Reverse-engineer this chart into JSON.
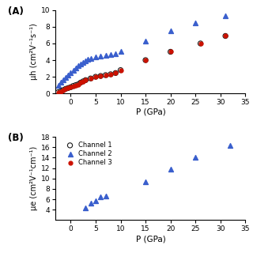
{
  "panel_A": {
    "ylabel": "μh (cm²V⁻¹s⁻¹)",
    "xlabel": "P (GPa)",
    "ylim": [
      0,
      10
    ],
    "xlim": [
      -3,
      34
    ],
    "yticks": [
      0,
      2,
      4,
      6,
      8,
      10
    ],
    "xticks": [
      0,
      5,
      10,
      15,
      20,
      25,
      30,
      35
    ],
    "ch2_x": [
      -2.5,
      -2,
      -1.5,
      -1,
      -0.5,
      0,
      0.5,
      1,
      1.5,
      2,
      2.5,
      3,
      3.5,
      4,
      5,
      6,
      7,
      8,
      9,
      10,
      15,
      20,
      25,
      31
    ],
    "ch2_y": [
      1.0,
      1.3,
      1.6,
      1.9,
      2.2,
      2.5,
      2.8,
      3.1,
      3.3,
      3.5,
      3.7,
      3.9,
      4.1,
      4.2,
      4.4,
      4.5,
      4.6,
      4.7,
      4.8,
      5.0,
      6.3,
      7.5,
      8.5,
      9.3
    ],
    "ch1_x": [
      -2.5,
      -2,
      -1.5,
      -1,
      -0.5,
      0,
      0.5,
      1,
      1.5,
      2,
      2.5,
      3,
      4,
      5,
      6,
      7,
      8,
      9,
      10,
      15,
      20,
      26,
      31
    ],
    "ch1_y": [
      0.15,
      0.25,
      0.4,
      0.55,
      0.65,
      0.75,
      0.9,
      1.0,
      1.1,
      1.3,
      1.45,
      1.6,
      1.8,
      2.0,
      2.1,
      2.2,
      2.3,
      2.45,
      2.8,
      4.0,
      5.0,
      6.0,
      6.9
    ],
    "ch3_x": [
      -2.5,
      -2,
      -1.5,
      -1,
      -0.5,
      0,
      0.5,
      1,
      1.5,
      2,
      2.5,
      3,
      4,
      5,
      6,
      7,
      8,
      9,
      10,
      15,
      20,
      26,
      31
    ],
    "ch3_y": [
      0.15,
      0.25,
      0.4,
      0.55,
      0.65,
      0.75,
      0.9,
      1.0,
      1.1,
      1.3,
      1.45,
      1.6,
      1.8,
      2.0,
      2.1,
      2.2,
      2.3,
      2.45,
      2.8,
      4.0,
      5.0,
      6.0,
      6.9
    ],
    "label": "(A)"
  },
  "panel_B": {
    "ylabel": "μe (cm²V⁻¹cm⁻¹)",
    "xlabel": "P (GPa)",
    "ylim": [
      2,
      18
    ],
    "xlim": [
      -3,
      34
    ],
    "yticks": [
      4,
      6,
      8,
      10,
      12,
      14,
      16,
      18
    ],
    "xticks": [
      0,
      5,
      10,
      15,
      20,
      25,
      30,
      35
    ],
    "ch2_x": [
      3,
      4,
      5,
      6,
      7,
      15,
      20,
      25,
      32
    ],
    "ch2_y": [
      4.3,
      5.3,
      5.7,
      6.5,
      6.6,
      9.3,
      11.8,
      14.0,
      16.3
    ],
    "label": "(B)",
    "legend_labels": [
      "Channel 1",
      "Channel 2",
      "Channel 3"
    ]
  },
  "colors": {
    "blue": "#3A5FCD",
    "black": "#1a1a1a",
    "red": "#CC1100"
  },
  "marker_size_tri": 18,
  "marker_size_circ_open": 20,
  "marker_size_circ_fill": 12
}
